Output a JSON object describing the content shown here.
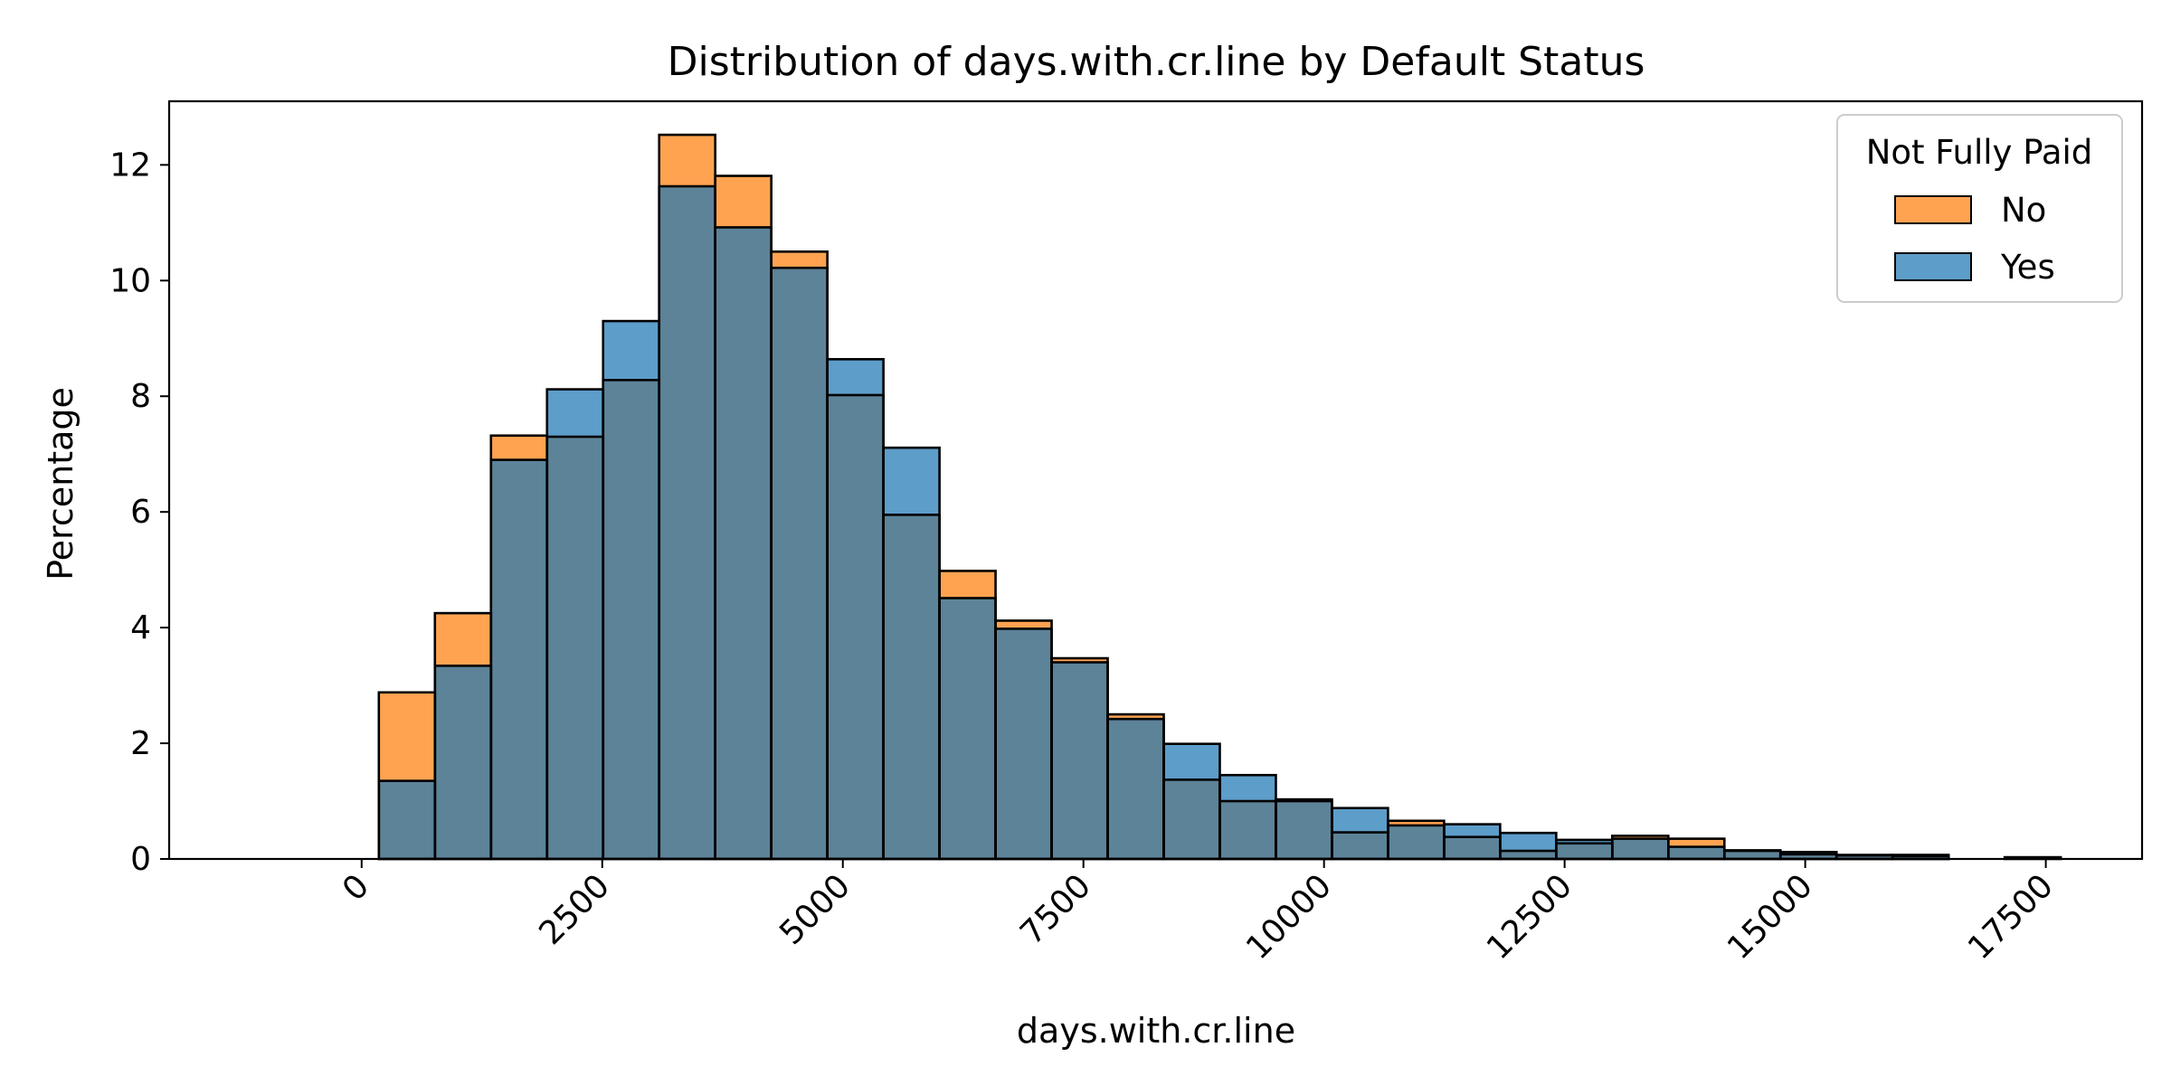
{
  "chart_data": {
    "type": "bar",
    "title": "Distribution of days.with.cr.line by Default Status",
    "xlabel": "days.with.cr.line",
    "ylabel": "Percentage",
    "xlim": [
      -2000,
      18500
    ],
    "ylim": [
      0,
      13.1
    ],
    "xticks": [
      0,
      2500,
      5000,
      7500,
      10000,
      12500,
      15000,
      17500
    ],
    "yticks": [
      0,
      2,
      4,
      6,
      8,
      10,
      12
    ],
    "bin_edges": [
      178.96,
      761.51,
      1344.06,
      1926.61,
      2509.16,
      3091.71,
      3674.26,
      4256.81,
      4839.36,
      5421.91,
      6004.46,
      6587.01,
      7169.56,
      7752.11,
      8334.66,
      8917.21,
      9499.76,
      10082.31,
      10664.86,
      11247.41,
      11829.96,
      12412.51,
      12995.06,
      13577.61,
      14160.16,
      14742.71,
      15325.26,
      15907.81,
      16490.36,
      17072.91,
      17655.46
    ],
    "legend": {
      "title": "Not Fully Paid",
      "placement": "upper right"
    },
    "series": [
      {
        "name": "No",
        "color": "#ff7f0e",
        "values": [
          2.88,
          4.25,
          7.32,
          7.3,
          8.28,
          12.52,
          11.81,
          10.5,
          8.02,
          5.95,
          4.98,
          4.12,
          3.47,
          2.5,
          1.37,
          1.0,
          1.03,
          0.46,
          0.66,
          0.38,
          0.14,
          0.27,
          0.4,
          0.35,
          0.14,
          0.08,
          0.06,
          0.05,
          0.0,
          0.03
        ]
      },
      {
        "name": "Yes",
        "color": "#1f77b4",
        "values": [
          1.35,
          3.34,
          6.9,
          8.12,
          9.3,
          11.63,
          10.92,
          10.22,
          8.64,
          7.11,
          4.51,
          3.98,
          3.4,
          2.42,
          1.99,
          1.45,
          1.0,
          0.88,
          0.58,
          0.6,
          0.45,
          0.33,
          0.35,
          0.21,
          0.15,
          0.12,
          0.07,
          0.07,
          0.0,
          0.0
        ]
      }
    ]
  }
}
